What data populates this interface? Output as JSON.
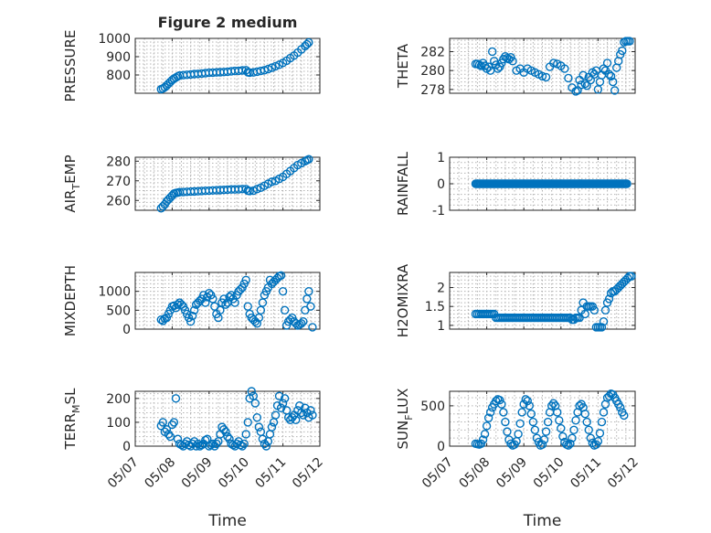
{
  "figure": {
    "accent_color": "#0072BD",
    "title": "Figure 2 medium",
    "xlabel": "Time"
  },
  "chart_data": [
    {
      "type": "scatter",
      "title": "Figure 2 medium",
      "ylabel": "PRESSURE",
      "xlim": [
        0,
        5
      ],
      "ylim": [
        700,
        1000
      ],
      "xticks_shown": false,
      "yticks": [
        800,
        900,
        1000
      ],
      "yticklabels": [
        "800",
        "900",
        "1000"
      ],
      "x": [
        0.7,
        0.75,
        0.8,
        0.85,
        0.9,
        0.95,
        1.0,
        1.05,
        1.1,
        1.15,
        1.2,
        1.3,
        1.4,
        1.5,
        1.6,
        1.7,
        1.8,
        1.9,
        2.0,
        2.1,
        2.2,
        2.3,
        2.4,
        2.5,
        2.6,
        2.7,
        2.8,
        2.9,
        3.0,
        3.05,
        3.1,
        3.2,
        3.3,
        3.4,
        3.5,
        3.6,
        3.7,
        3.8,
        3.9,
        4.0,
        4.1,
        4.2,
        4.3,
        4.4,
        4.5,
        4.6,
        4.65,
        4.7
      ],
      "y": [
        722,
        726,
        733,
        742,
        752,
        762,
        772,
        780,
        786,
        792,
        797,
        799,
        801,
        803,
        805,
        806,
        808,
        810,
        812,
        813,
        814,
        815,
        816,
        818,
        820,
        822,
        823,
        825,
        826,
        815,
        813,
        814,
        818,
        822,
        826,
        832,
        840,
        848,
        856,
        866,
        878,
        892,
        906,
        922,
        940,
        958,
        968,
        978
      ]
    },
    {
      "type": "scatter",
      "ylabel": "THETA",
      "xlim": [
        0,
        5
      ],
      "ylim": [
        277.6,
        283.4
      ],
      "xticks_shown": false,
      "yticks": [
        278,
        280,
        282
      ],
      "yticklabels": [
        "278",
        "280",
        "282"
      ],
      "x": [
        0.7,
        0.75,
        0.8,
        0.85,
        0.9,
        0.95,
        1.0,
        1.05,
        1.1,
        1.15,
        1.2,
        1.25,
        1.3,
        1.35,
        1.4,
        1.45,
        1.5,
        1.55,
        1.6,
        1.65,
        1.7,
        1.8,
        1.9,
        2.0,
        2.1,
        2.2,
        2.3,
        2.4,
        2.5,
        2.6,
        2.7,
        2.8,
        2.9,
        3.0,
        3.1,
        3.2,
        3.3,
        3.4,
        3.45,
        3.5,
        3.55,
        3.6,
        3.65,
        3.7,
        3.75,
        3.8,
        3.85,
        3.9,
        3.95,
        4.0,
        4.05,
        4.1,
        4.15,
        4.2,
        4.25,
        4.3,
        4.35,
        4.4,
        4.45,
        4.5,
        4.55,
        4.6,
        4.65,
        4.7,
        4.75,
        4.8,
        4.85
      ],
      "y": [
        280.7,
        280.7,
        280.6,
        280.5,
        280.8,
        280.5,
        280.2,
        280.4,
        280.0,
        282.0,
        281.0,
        280.6,
        280.2,
        280.4,
        280.8,
        281.2,
        281.5,
        281.3,
        281.2,
        281.4,
        281.0,
        280.0,
        280.2,
        279.8,
        280.2,
        280.0,
        279.8,
        279.6,
        279.4,
        279.3,
        280.4,
        280.8,
        280.7,
        280.5,
        280.2,
        279.2,
        278.2,
        277.8,
        277.9,
        279.0,
        278.5,
        279.5,
        278.6,
        278.4,
        279.3,
        279.0,
        279.8,
        279.6,
        280.0,
        278.0,
        278.8,
        279.5,
        280.2,
        280.0,
        280.8,
        279.6,
        279.4,
        278.8,
        277.9,
        280.3,
        281.0,
        281.7,
        282.1,
        283.0,
        283.1,
        283.1,
        283.1
      ]
    },
    {
      "type": "scatter",
      "ylabel": "AIR_TEMP",
      "xlim": [
        0,
        5
      ],
      "ylim": [
        255,
        282
      ],
      "xticks_shown": false,
      "yticks": [
        260,
        270,
        280
      ],
      "yticklabels": [
        "260",
        "270",
        "280"
      ],
      "x": [
        0.7,
        0.75,
        0.8,
        0.85,
        0.9,
        0.95,
        1.0,
        1.05,
        1.1,
        1.15,
        1.2,
        1.3,
        1.4,
        1.5,
        1.6,
        1.7,
        1.8,
        1.9,
        2.0,
        2.1,
        2.2,
        2.3,
        2.4,
        2.5,
        2.6,
        2.7,
        2.8,
        2.9,
        3.0,
        3.05,
        3.1,
        3.2,
        3.3,
        3.4,
        3.5,
        3.6,
        3.7,
        3.8,
        3.9,
        4.0,
        4.1,
        4.2,
        4.3,
        4.4,
        4.5,
        4.6,
        4.65,
        4.7
      ],
      "y": [
        256,
        257,
        258,
        259.5,
        260.5,
        261.5,
        262.5,
        263.5,
        263.8,
        264.0,
        264.2,
        264.3,
        264.4,
        264.5,
        264.6,
        264.7,
        264.8,
        264.9,
        265.0,
        265.1,
        265.2,
        265.3,
        265.4,
        265.5,
        265.6,
        265.6,
        265.7,
        265.8,
        265.8,
        265.0,
        264.8,
        265.0,
        265.8,
        266.5,
        267.5,
        268.5,
        269.5,
        270.0,
        271.0,
        272.0,
        273.5,
        275.0,
        276.5,
        278.0,
        279.0,
        280.0,
        280.5,
        281.0
      ]
    },
    {
      "type": "scatter",
      "ylabel": "RAINFALL",
      "xlim": [
        0,
        5
      ],
      "ylim": [
        -1,
        1
      ],
      "xticks_shown": false,
      "yticks": [
        -1,
        0,
        1
      ],
      "yticklabels": [
        "-1",
        "0",
        "1"
      ],
      "x_range": [
        0.7,
        4.8
      ],
      "constant_value": 0
    },
    {
      "type": "scatter",
      "ylabel": "MIXDEPTH",
      "xlim": [
        0,
        5
      ],
      "ylim": [
        0,
        1500
      ],
      "xticks_shown": false,
      "yticks": [
        0,
        500,
        1000
      ],
      "yticklabels": [
        "0",
        "500",
        "1000"
      ],
      "x": [
        0.7,
        0.75,
        0.8,
        0.85,
        0.9,
        0.95,
        1.0,
        1.05,
        1.1,
        1.15,
        1.2,
        1.25,
        1.3,
        1.35,
        1.4,
        1.45,
        1.5,
        1.55,
        1.6,
        1.65,
        1.7,
        1.75,
        1.8,
        1.85,
        1.9,
        1.95,
        2.0,
        2.05,
        2.1,
        2.15,
        2.2,
        2.25,
        2.3,
        2.35,
        2.4,
        2.45,
        2.5,
        2.55,
        2.6,
        2.65,
        2.7,
        2.75,
        2.8,
        2.85,
        2.9,
        2.95,
        3.0,
        3.05,
        3.1,
        3.15,
        3.2,
        3.25,
        3.3,
        3.35,
        3.4,
        3.45,
        3.5,
        3.55,
        3.6,
        3.65,
        3.7,
        3.75,
        3.8,
        3.85,
        3.9,
        3.95,
        4.0,
        4.05,
        4.1,
        4.15,
        4.2,
        4.25,
        4.3,
        4.35,
        4.4,
        4.45,
        4.5,
        4.55,
        4.6,
        4.65,
        4.7,
        4.75,
        4.8
      ],
      "y": [
        250,
        220,
        280,
        300,
        400,
        500,
        600,
        620,
        560,
        650,
        700,
        650,
        600,
        500,
        400,
        300,
        200,
        350,
        500,
        650,
        700,
        750,
        800,
        900,
        700,
        850,
        950,
        900,
        800,
        600,
        400,
        300,
        500,
        700,
        800,
        650,
        700,
        850,
        900,
        800,
        700,
        900,
        1000,
        1050,
        1100,
        1200,
        1300,
        600,
        400,
        300,
        250,
        200,
        150,
        300,
        500,
        700,
        900,
        1000,
        1100,
        1300,
        1200,
        1250,
        1300,
        1350,
        1400,
        1420,
        1000,
        500,
        100,
        200,
        250,
        300,
        200,
        150,
        100,
        120,
        150,
        200,
        500,
        800,
        1000,
        600,
        50
      ]
    },
    {
      "type": "scatter",
      "ylabel": "H2OMIXRA",
      "xlim": [
        0,
        5
      ],
      "ylim": [
        0.9,
        2.4
      ],
      "xticks_shown": false,
      "yticks": [
        1,
        1.5,
        2
      ],
      "yticklabels": [
        "1",
        "1.5",
        "2"
      ],
      "x": [
        0.7,
        0.75,
        0.8,
        0.85,
        0.9,
        0.95,
        1.0,
        1.05,
        1.1,
        1.15,
        1.2,
        1.25,
        1.3,
        1.35,
        1.4,
        1.45,
        1.5,
        1.55,
        1.6,
        1.65,
        1.7,
        1.75,
        1.8,
        1.85,
        1.9,
        1.95,
        2.0,
        2.05,
        2.1,
        2.15,
        2.2,
        2.25,
        2.3,
        2.35,
        2.4,
        2.45,
        2.5,
        2.55,
        2.6,
        2.65,
        2.7,
        2.75,
        2.8,
        2.85,
        2.9,
        2.95,
        3.0,
        3.05,
        3.1,
        3.15,
        3.2,
        3.25,
        3.3,
        3.35,
        3.4,
        3.45,
        3.5,
        3.55,
        3.6,
        3.65,
        3.7,
        3.75,
        3.8,
        3.85,
        3.9,
        3.95,
        4.0,
        4.05,
        4.1,
        4.15,
        4.2,
        4.25,
        4.3,
        4.35,
        4.4,
        4.45,
        4.5,
        4.55,
        4.6,
        4.65,
        4.7,
        4.75,
        4.8,
        4.85,
        4.9
      ],
      "y": [
        1.3,
        1.3,
        1.3,
        1.3,
        1.3,
        1.3,
        1.3,
        1.3,
        1.3,
        1.3,
        1.3,
        1.2,
        1.2,
        1.2,
        1.2,
        1.2,
        1.2,
        1.2,
        1.2,
        1.2,
        1.2,
        1.2,
        1.2,
        1.2,
        1.2,
        1.2,
        1.2,
        1.2,
        1.2,
        1.2,
        1.2,
        1.2,
        1.2,
        1.2,
        1.2,
        1.2,
        1.2,
        1.2,
        1.2,
        1.2,
        1.2,
        1.2,
        1.2,
        1.2,
        1.2,
        1.2,
        1.2,
        1.2,
        1.2,
        1.2,
        1.2,
        1.2,
        1.15,
        1.15,
        1.2,
        1.2,
        1.2,
        1.4,
        1.6,
        1.3,
        1.5,
        1.5,
        1.5,
        1.5,
        1.4,
        0.95,
        0.95,
        0.95,
        0.95,
        1.1,
        1.4,
        1.6,
        1.7,
        1.85,
        1.9,
        1.9,
        1.95,
        2.0,
        2.05,
        2.1,
        2.15,
        2.2,
        2.25,
        2.3,
        2.3
      ]
    },
    {
      "type": "scatter",
      "ylabel": "TERR_MSL",
      "xlim": [
        0,
        5
      ],
      "ylim": [
        0,
        230
      ],
      "yticks": [
        0,
        100,
        200
      ],
      "yticklabels": [
        "0",
        "100",
        "200"
      ],
      "xticks": [
        0,
        1,
        2,
        3,
        4,
        5
      ],
      "xticklabels": [
        "05/07",
        "05/08",
        "05/09",
        "05/10",
        "05/11",
        "05/12"
      ],
      "x": [
        0.7,
        0.75,
        0.8,
        0.85,
        0.9,
        0.95,
        1.0,
        1.05,
        1.1,
        1.15,
        1.2,
        1.25,
        1.3,
        1.35,
        1.4,
        1.45,
        1.5,
        1.55,
        1.6,
        1.65,
        1.7,
        1.75,
        1.8,
        1.85,
        1.9,
        1.95,
        2.0,
        2.05,
        2.1,
        2.15,
        2.2,
        2.25,
        2.3,
        2.35,
        2.4,
        2.45,
        2.5,
        2.55,
        2.6,
        2.65,
        2.7,
        2.75,
        2.8,
        2.85,
        2.9,
        2.95,
        3.0,
        3.05,
        3.1,
        3.15,
        3.2,
        3.25,
        3.3,
        3.35,
        3.4,
        3.45,
        3.5,
        3.55,
        3.6,
        3.65,
        3.7,
        3.75,
        3.8,
        3.85,
        3.9,
        3.95,
        4.0,
        4.05,
        4.1,
        4.15,
        4.2,
        4.25,
        4.3,
        4.35,
        4.4,
        4.45,
        4.5,
        4.55,
        4.6,
        4.65,
        4.7,
        4.75,
        4.8
      ],
      "y": [
        85,
        100,
        60,
        70,
        50,
        40,
        90,
        100,
        200,
        30,
        10,
        5,
        0,
        10,
        20,
        5,
        0,
        10,
        20,
        0,
        10,
        0,
        5,
        10,
        25,
        30,
        0,
        5,
        10,
        0,
        10,
        20,
        50,
        80,
        70,
        60,
        40,
        30,
        10,
        5,
        0,
        10,
        20,
        5,
        0,
        10,
        50,
        100,
        200,
        230,
        210,
        180,
        120,
        80,
        60,
        30,
        10,
        0,
        20,
        50,
        80,
        100,
        130,
        170,
        210,
        160,
        180,
        200,
        150,
        120,
        110,
        120,
        130,
        110,
        150,
        170,
        140,
        130,
        160,
        140,
        120,
        150,
        130
      ]
    },
    {
      "type": "scatter",
      "ylabel": "SUN_FLUX",
      "xlim": [
        0,
        5
      ],
      "ylim": [
        0,
        680
      ],
      "yticks": [
        0,
        500
      ],
      "yticklabels": [
        "0",
        "500"
      ],
      "xticks": [
        0,
        1,
        2,
        3,
        4,
        5
      ],
      "xticklabels": [
        "05/07",
        "05/08",
        "05/09",
        "05/10",
        "05/11",
        "05/12"
      ],
      "x": [
        0.7,
        0.75,
        0.8,
        0.85,
        0.9,
        0.95,
        1.0,
        1.05,
        1.1,
        1.15,
        1.2,
        1.25,
        1.3,
        1.35,
        1.4,
        1.45,
        1.5,
        1.55,
        1.6,
        1.65,
        1.7,
        1.75,
        1.8,
        1.85,
        1.9,
        1.95,
        2.0,
        2.05,
        2.1,
        2.15,
        2.2,
        2.25,
        2.3,
        2.35,
        2.4,
        2.45,
        2.5,
        2.55,
        2.6,
        2.65,
        2.7,
        2.75,
        2.8,
        2.85,
        2.9,
        2.95,
        3.0,
        3.05,
        3.1,
        3.15,
        3.2,
        3.25,
        3.3,
        3.35,
        3.4,
        3.45,
        3.5,
        3.55,
        3.6,
        3.65,
        3.7,
        3.75,
        3.8,
        3.85,
        3.9,
        3.95,
        4.0,
        4.05,
        4.1,
        4.15,
        4.2,
        4.25,
        4.3,
        4.35,
        4.4,
        4.45,
        4.5,
        4.55,
        4.6,
        4.65,
        4.7
      ],
      "y": [
        30,
        25,
        20,
        30,
        80,
        150,
        250,
        350,
        420,
        480,
        520,
        560,
        580,
        570,
        520,
        420,
        300,
        180,
        80,
        30,
        10,
        20,
        60,
        150,
        280,
        420,
        520,
        580,
        560,
        500,
        400,
        300,
        200,
        100,
        50,
        10,
        20,
        80,
        180,
        300,
        420,
        500,
        530,
        500,
        420,
        320,
        220,
        120,
        50,
        20,
        10,
        30,
        100,
        200,
        320,
        420,
        500,
        520,
        480,
        400,
        300,
        200,
        100,
        40,
        10,
        20,
        60,
        160,
        300,
        420,
        520,
        600,
        620,
        650,
        640,
        600,
        560,
        520,
        480,
        420,
        380
      ]
    }
  ]
}
